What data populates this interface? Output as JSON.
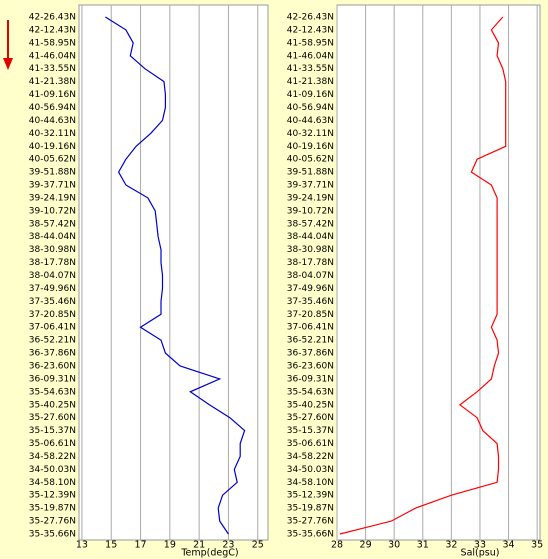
{
  "chart_data": [
    {
      "type": "line",
      "x_label": "Temp(degC)",
      "color": "#0000cc",
      "categories": [
        "42-26.43N",
        "42-12.43N",
        "41-58.95N",
        "41-46.04N",
        "41-33.55N",
        "41-21.38N",
        "41-09.16N",
        "40-56.94N",
        "40-44.63N",
        "40-32.11N",
        "40-19.16N",
        "40-05.62N",
        "39-51.88N",
        "39-37.71N",
        "39-24.19N",
        "39-10.72N",
        "38-57.42N",
        "38-44.04N",
        "38-30.98N",
        "38-17.78N",
        "38-04.07N",
        "37-49.96N",
        "37-35.46N",
        "37-20.85N",
        "37-06.41N",
        "36-52.21N",
        "36-37.86N",
        "36-23.60N",
        "36-09.31N",
        "35-54.63N",
        "35-40.25N",
        "35-27.60N",
        "35-15.37N",
        "35-06.61N",
        "34-58.22N",
        "34-50.03N",
        "34-58.10N",
        "35-12.39N",
        "35-19.87N",
        "35-27.76N",
        "35-35.66N"
      ],
      "values": [
        14.6,
        16,
        16.5,
        16.3,
        17.3,
        18.6,
        18.7,
        18.7,
        18.5,
        17.7,
        16.7,
        16,
        15.5,
        16,
        17.5,
        18,
        18.1,
        18.2,
        18.4,
        18.4,
        18.5,
        18.5,
        18.4,
        18.4,
        17,
        18.4,
        18.7,
        19.7,
        22.4,
        20.4,
        21.7,
        23.1,
        24.1,
        23.8,
        23.8,
        23.4,
        23.6,
        22.6,
        22.3,
        22.4,
        23
      ],
      "xlim": [
        12.8,
        25.7
      ],
      "xticks": [
        13,
        15,
        17,
        19,
        21,
        23,
        25
      ],
      "grid": true
    },
    {
      "type": "line",
      "x_label": "Sal(psu)",
      "color": "#ff0000",
      "categories": [
        "42-26.43N",
        "42-12.43N",
        "41-58.95N",
        "41-46.04N",
        "41-33.55N",
        "41-21.38N",
        "41-09.16N",
        "40-56.94N",
        "40-44.63N",
        "40-32.11N",
        "40-19.16N",
        "40-05.62N",
        "39-51.88N",
        "39-37.71N",
        "39-24.19N",
        "39-10.72N",
        "38-57.42N",
        "38-44.04N",
        "38-30.98N",
        "38-17.78N",
        "38-04.07N",
        "37-49.96N",
        "37-35.46N",
        "37-20.85N",
        "37-06.41N",
        "36-52.21N",
        "36-37.86N",
        "36-23.60N",
        "36-09.31N",
        "35-54.63N",
        "35-40.25N",
        "35-27.60N",
        "35-15.37N",
        "35-06.61N",
        "34-58.22N",
        "34-50.03N",
        "34-58.10N",
        "35-12.39N",
        "35-19.87N",
        "35-27.76N",
        "35-35.66N"
      ],
      "values": [
        33.8,
        33.4,
        33.65,
        33.6,
        33.8,
        33.9,
        33.9,
        33.9,
        33.9,
        33.9,
        33.9,
        32.9,
        32.7,
        33.4,
        33.6,
        33.6,
        33.6,
        33.6,
        33.6,
        33.6,
        33.6,
        33.6,
        33.6,
        33.6,
        33.4,
        33.6,
        33.65,
        33.5,
        33.4,
        32.9,
        32.3,
        32.9,
        33.1,
        33.6,
        33.65,
        33.65,
        33.6,
        32,
        30.75,
        29.9,
        28.1
      ],
      "xlim": [
        28,
        35.1
      ],
      "xticks": [
        28,
        29,
        30,
        31,
        32,
        33,
        34,
        35
      ],
      "grid": true
    }
  ]
}
